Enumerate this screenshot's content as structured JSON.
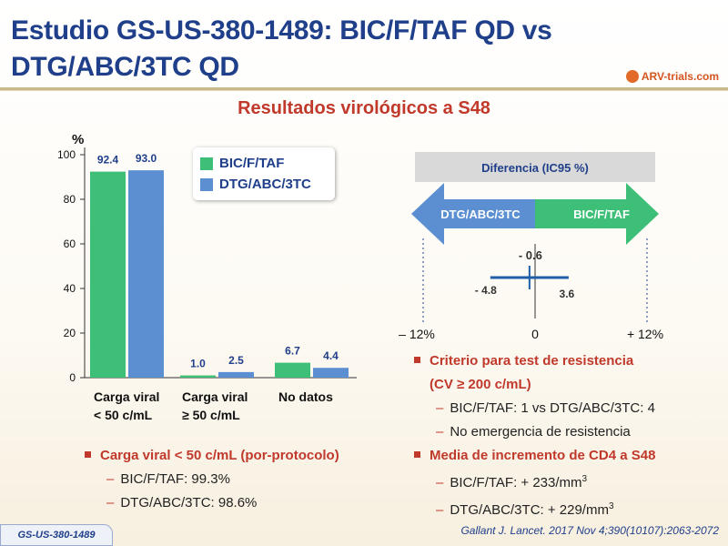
{
  "title": "Estudio GS-US-380-1489: BIC/F/TAF QD vs DTG/ABC/3TC QD",
  "logo": "ARV-trials.com",
  "subtitle": "Resultados virológicos a S48",
  "colors": {
    "bic": "#3dbf78",
    "dtg": "#5b8fd1",
    "accent": "#c0392b",
    "title": "#1f3f8a"
  },
  "chart_data": [
    {
      "type": "bar",
      "ylabel": "%",
      "ylim": [
        0,
        100
      ],
      "yticks": [
        0,
        20,
        40,
        60,
        80,
        100
      ],
      "categories": [
        "Carga viral < 50 c/mL",
        "Carga viral ≥ 50 c/mL",
        "No datos"
      ],
      "category_lines": [
        [
          "Carga viral",
          "< 50 c/mL"
        ],
        [
          "Carga viral",
          "≥ 50 c/mL"
        ],
        [
          "No datos"
        ]
      ],
      "series": [
        {
          "name": "BIC/F/TAF",
          "values": [
            92.4,
            1.0,
            6.7
          ],
          "labels": [
            "92.4",
            "1.0",
            "6.7"
          ]
        },
        {
          "name": "DTG/ABC/3TC",
          "values": [
            93.0,
            2.5,
            4.4
          ],
          "labels": [
            "93.0",
            "2.5",
            "4.4"
          ]
        }
      ],
      "legend": "top-center"
    },
    {
      "type": "forest",
      "header": "Diferencia (IC95 %)",
      "arrow_left": "DTG/ABC/3TC",
      "arrow_right": "BIC/F/TAF",
      "estimate": -0.6,
      "ci": [
        -4.8,
        3.6
      ],
      "estimate_label": "- 0.6",
      "ci_labels": [
        "- 4.8",
        "3.6"
      ],
      "xlim": [
        -12,
        12
      ],
      "axis_labels": [
        "– 12%",
        "0",
        "+ 12%"
      ]
    }
  ],
  "left_bullets": {
    "main": "Carga viral < 50 c/mL (por-protocolo)",
    "subs": [
      "BIC/F/TAF:  99.3%",
      "DTG/ABC/3TC:  98.6%"
    ]
  },
  "right_bullets": [
    {
      "main1": "Criterio para test de resistencia",
      "main2": "(CV ≥ 200 c/mL)",
      "subs": [
        "BIC/F/TAF:  1 vs DTG/ABC/3TC:  4",
        "No emergencia de resistencia"
      ]
    },
    {
      "main1": "Media de incremento de CD4 a S48",
      "subs": [
        {
          "text": "BIC/F/TAF:  + 233/mm",
          "sup": "3"
        },
        {
          "text": "DTG/ABC/3TC:  + 229/mm",
          "sup": "3"
        }
      ]
    }
  ],
  "footer": {
    "study_tag": "GS-US-380-1489",
    "citation": "Gallant J. Lancet. 2017 Nov 4;390(10107):2063-2072"
  }
}
